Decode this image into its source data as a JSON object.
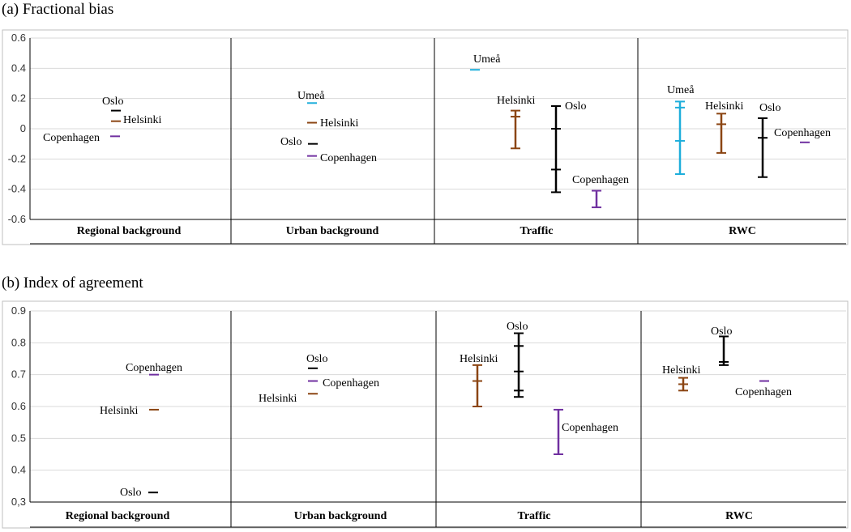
{
  "colors": {
    "Oslo": "#000000",
    "Helsinki": "#8B4513",
    "Copenhagen": "#7030A0",
    "Umeå": "#1EAEDB",
    "grid": "#d9d9d9",
    "panel_border": "#bfbfbf"
  },
  "chart_data": [
    {
      "type": "scatter",
      "title": "(a) Fractional bias",
      "ylim": [
        -0.6,
        0.6
      ],
      "yticks": [
        -0.6,
        -0.4,
        -0.2,
        0,
        0.2,
        0.4,
        0.6
      ],
      "ytick_labels": [
        "-0.6",
        "-0.4",
        "-0.2",
        "0",
        "0.2",
        "0.4",
        "0.6"
      ],
      "grid": true,
      "categories": [
        "Regional background",
        "Urban background",
        "Traffic",
        "RWC"
      ],
      "entries": [
        {
          "category": "Regional background",
          "city": "Oslo",
          "values": [
            0.12
          ]
        },
        {
          "category": "Regional background",
          "city": "Helsinki",
          "values": [
            0.05
          ]
        },
        {
          "category": "Regional background",
          "city": "Copenhagen",
          "values": [
            -0.05
          ]
        },
        {
          "category": "Urban background",
          "city": "Umeå",
          "values": [
            0.17
          ]
        },
        {
          "category": "Urban background",
          "city": "Helsinki",
          "values": [
            0.04
          ]
        },
        {
          "category": "Urban background",
          "city": "Oslo",
          "values": [
            -0.1
          ]
        },
        {
          "category": "Urban background",
          "city": "Copenhagen",
          "values": [
            -0.18
          ]
        },
        {
          "category": "Traffic",
          "city": "Umeå",
          "values": [
            0.39
          ]
        },
        {
          "category": "Traffic",
          "city": "Helsinki",
          "values": [
            0.12,
            0.08,
            -0.13
          ]
        },
        {
          "category": "Traffic",
          "city": "Oslo",
          "values": [
            0.15,
            0.0,
            -0.27,
            -0.42
          ]
        },
        {
          "category": "Traffic",
          "city": "Copenhagen",
          "values": [
            -0.41,
            -0.52
          ]
        },
        {
          "category": "RWC",
          "city": "Umeå",
          "values": [
            0.18,
            0.14,
            -0.08,
            -0.3
          ]
        },
        {
          "category": "RWC",
          "city": "Helsinki",
          "values": [
            0.1,
            0.03,
            -0.16
          ]
        },
        {
          "category": "RWC",
          "city": "Oslo",
          "values": [
            0.07,
            -0.06,
            -0.32
          ]
        },
        {
          "category": "RWC",
          "city": "Copenhagen",
          "values": [
            -0.09
          ]
        }
      ]
    },
    {
      "type": "scatter",
      "title": "(b) Index  of agreement",
      "ylim": [
        0.3,
        0.9
      ],
      "yticks": [
        0.3,
        0.4,
        0.5,
        0.6,
        0.7,
        0.8,
        0.9
      ],
      "ytick_labels": [
        "0,3",
        "0.4",
        "0.5",
        "0.6",
        "0.7",
        "0.8",
        "0.9"
      ],
      "grid": true,
      "categories": [
        "Regional background",
        "Urban background",
        "Traffic",
        "RWC"
      ],
      "entries": [
        {
          "category": "Regional background",
          "city": "Copenhagen",
          "values": [
            0.7
          ]
        },
        {
          "category": "Regional background",
          "city": "Helsinki",
          "values": [
            0.59
          ]
        },
        {
          "category": "Regional background",
          "city": "Oslo",
          "values": [
            0.33
          ]
        },
        {
          "category": "Urban background",
          "city": "Oslo",
          "values": [
            0.72
          ]
        },
        {
          "category": "Urban background",
          "city": "Copenhagen",
          "values": [
            0.68
          ]
        },
        {
          "category": "Urban background",
          "city": "Helsinki",
          "values": [
            0.64
          ]
        },
        {
          "category": "Traffic",
          "city": "Helsinki",
          "values": [
            0.73,
            0.68,
            0.6
          ]
        },
        {
          "category": "Traffic",
          "city": "Oslo",
          "values": [
            0.83,
            0.79,
            0.71,
            0.65,
            0.63
          ]
        },
        {
          "category": "Traffic",
          "city": "Copenhagen",
          "values": [
            0.59,
            0.45
          ]
        },
        {
          "category": "RWC",
          "city": "Helsinki",
          "values": [
            0.69,
            0.67,
            0.65
          ]
        },
        {
          "category": "RWC",
          "city": "Oslo",
          "values": [
            0.82,
            0.74,
            0.73
          ]
        },
        {
          "category": "RWC",
          "city": "Copenhagen",
          "values": [
            0.68
          ]
        }
      ]
    }
  ]
}
